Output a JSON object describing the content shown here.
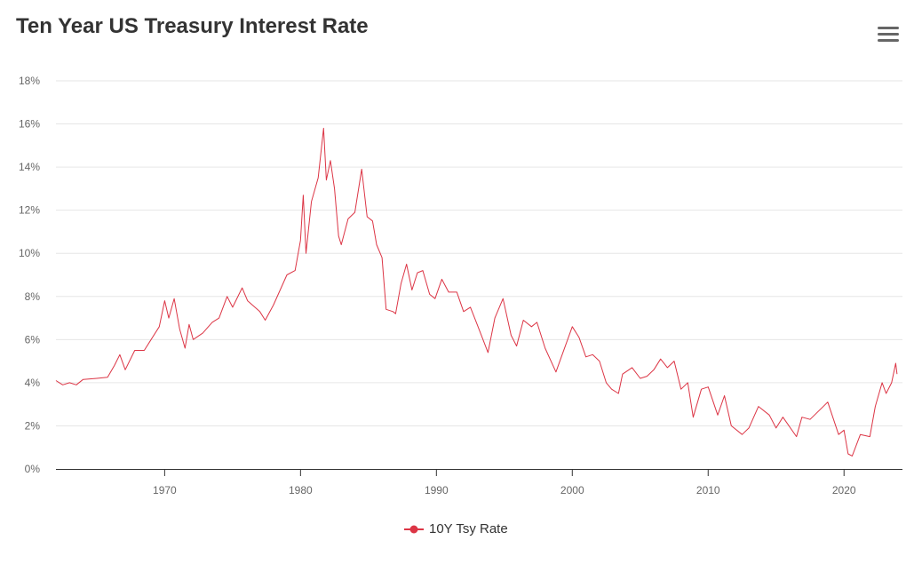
{
  "chart_data": {
    "type": "line",
    "title": "Ten Year US Treasury Interest Rate",
    "xlabel": "",
    "ylabel": "",
    "xlim": [
      1962,
      2024.3
    ],
    "ylim": [
      0,
      18
    ],
    "y_ticks": [
      "0%",
      "2%",
      "4%",
      "6%",
      "8%",
      "10%",
      "12%",
      "14%",
      "16%",
      "18%"
    ],
    "x_ticks": [
      "1970",
      "1980",
      "1990",
      "2000",
      "2010",
      "2020"
    ],
    "grid": "horizontal",
    "legend_placement": "bottom",
    "series": [
      {
        "name": "10Y Tsy Rate",
        "color": "#dc3545",
        "points": [
          [
            1962.0,
            4.1
          ],
          [
            1962.5,
            3.9
          ],
          [
            1963.0,
            4.0
          ],
          [
            1963.5,
            3.9
          ],
          [
            1964.0,
            4.15
          ],
          [
            1965.0,
            4.2
          ],
          [
            1965.8,
            4.25
          ],
          [
            1966.3,
            4.8
          ],
          [
            1966.7,
            5.3
          ],
          [
            1967.1,
            4.6
          ],
          [
            1967.8,
            5.5
          ],
          [
            1968.5,
            5.5
          ],
          [
            1969.0,
            6.0
          ],
          [
            1969.6,
            6.6
          ],
          [
            1970.0,
            7.8
          ],
          [
            1970.3,
            7.0
          ],
          [
            1970.7,
            7.9
          ],
          [
            1971.1,
            6.5
          ],
          [
            1971.5,
            5.6
          ],
          [
            1971.8,
            6.7
          ],
          [
            1972.1,
            6.0
          ],
          [
            1972.8,
            6.3
          ],
          [
            1973.5,
            6.8
          ],
          [
            1974.0,
            7.0
          ],
          [
            1974.6,
            8.0
          ],
          [
            1975.0,
            7.5
          ],
          [
            1975.7,
            8.4
          ],
          [
            1976.1,
            7.8
          ],
          [
            1977.0,
            7.3
          ],
          [
            1977.4,
            6.9
          ],
          [
            1978.0,
            7.6
          ],
          [
            1979.0,
            9.0
          ],
          [
            1979.6,
            9.2
          ],
          [
            1980.0,
            10.6
          ],
          [
            1980.2,
            12.7
          ],
          [
            1980.4,
            10.0
          ],
          [
            1980.8,
            12.4
          ],
          [
            1981.3,
            13.5
          ],
          [
            1981.7,
            15.8
          ],
          [
            1981.9,
            13.4
          ],
          [
            1982.2,
            14.3
          ],
          [
            1982.5,
            13.0
          ],
          [
            1982.8,
            10.8
          ],
          [
            1983.0,
            10.4
          ],
          [
            1983.5,
            11.6
          ],
          [
            1984.0,
            11.9
          ],
          [
            1984.5,
            13.9
          ],
          [
            1984.9,
            11.7
          ],
          [
            1985.3,
            11.5
          ],
          [
            1985.6,
            10.4
          ],
          [
            1986.0,
            9.8
          ],
          [
            1986.3,
            7.4
          ],
          [
            1986.8,
            7.3
          ],
          [
            1987.0,
            7.2
          ],
          [
            1987.4,
            8.6
          ],
          [
            1987.8,
            9.5
          ],
          [
            1988.2,
            8.3
          ],
          [
            1988.6,
            9.1
          ],
          [
            1989.0,
            9.2
          ],
          [
            1989.5,
            8.1
          ],
          [
            1989.9,
            7.9
          ],
          [
            1990.4,
            8.8
          ],
          [
            1990.9,
            8.2
          ],
          [
            1991.5,
            8.2
          ],
          [
            1992.0,
            7.3
          ],
          [
            1992.5,
            7.5
          ],
          [
            1993.0,
            6.7
          ],
          [
            1993.8,
            5.4
          ],
          [
            1994.3,
            7.0
          ],
          [
            1994.9,
            7.9
          ],
          [
            1995.5,
            6.2
          ],
          [
            1995.9,
            5.7
          ],
          [
            1996.4,
            6.9
          ],
          [
            1997.0,
            6.6
          ],
          [
            1997.4,
            6.8
          ],
          [
            1998.0,
            5.6
          ],
          [
            1998.8,
            4.5
          ],
          [
            1999.2,
            5.2
          ],
          [
            2000.0,
            6.6
          ],
          [
            2000.5,
            6.1
          ],
          [
            2001.0,
            5.2
          ],
          [
            2001.5,
            5.3
          ],
          [
            2002.0,
            5.0
          ],
          [
            2002.5,
            4.0
          ],
          [
            2002.9,
            3.7
          ],
          [
            2003.4,
            3.5
          ],
          [
            2003.7,
            4.4
          ],
          [
            2004.4,
            4.7
          ],
          [
            2005.0,
            4.2
          ],
          [
            2005.5,
            4.3
          ],
          [
            2006.0,
            4.6
          ],
          [
            2006.5,
            5.1
          ],
          [
            2007.0,
            4.7
          ],
          [
            2007.5,
            5.0
          ],
          [
            2008.0,
            3.7
          ],
          [
            2008.5,
            4.0
          ],
          [
            2008.9,
            2.4
          ],
          [
            2009.5,
            3.7
          ],
          [
            2010.0,
            3.8
          ],
          [
            2010.7,
            2.5
          ],
          [
            2011.2,
            3.4
          ],
          [
            2011.7,
            2.0
          ],
          [
            2012.5,
            1.6
          ],
          [
            2013.0,
            1.9
          ],
          [
            2013.7,
            2.9
          ],
          [
            2014.5,
            2.5
          ],
          [
            2015.0,
            1.9
          ],
          [
            2015.5,
            2.4
          ],
          [
            2016.5,
            1.5
          ],
          [
            2016.9,
            2.4
          ],
          [
            2017.5,
            2.3
          ],
          [
            2018.8,
            3.1
          ],
          [
            2019.6,
            1.6
          ],
          [
            2020.0,
            1.8
          ],
          [
            2020.3,
            0.7
          ],
          [
            2020.6,
            0.6
          ],
          [
            2021.2,
            1.6
          ],
          [
            2021.9,
            1.5
          ],
          [
            2022.3,
            2.9
          ],
          [
            2022.8,
            4.0
          ],
          [
            2023.1,
            3.5
          ],
          [
            2023.5,
            4.0
          ],
          [
            2023.8,
            4.9
          ],
          [
            2023.9,
            4.4
          ]
        ]
      }
    ]
  },
  "menu_icon": "hamburger-menu-icon"
}
